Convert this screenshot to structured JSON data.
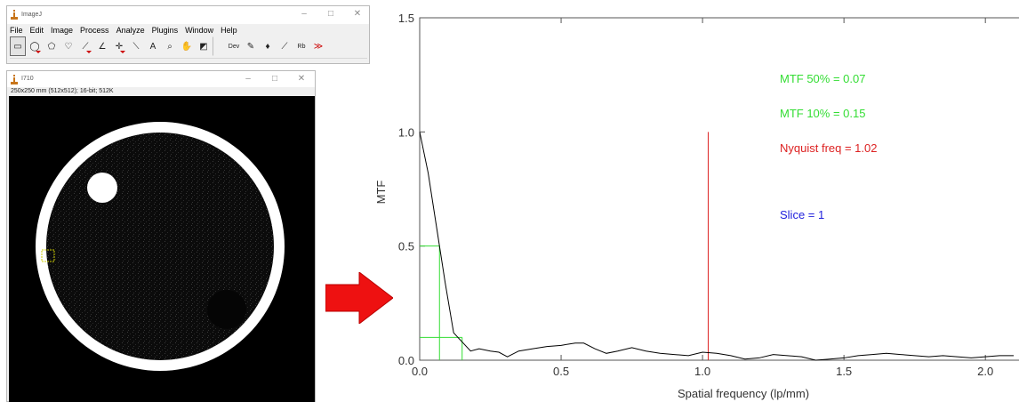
{
  "imagej": {
    "title": "ImageJ",
    "menu": [
      "File",
      "Edit",
      "Image",
      "Process",
      "Analyze",
      "Plugins",
      "Window",
      "Help"
    ],
    "tools": [
      {
        "icon": "rectangle-select-icon",
        "glyph": "▭",
        "selected": true
      },
      {
        "icon": "oval-select-icon",
        "glyph": "◯"
      },
      {
        "icon": "polygon-select-icon",
        "glyph": "⬠"
      },
      {
        "icon": "freehand-select-icon",
        "glyph": "♡"
      },
      {
        "icon": "line-tool-icon",
        "glyph": "⟋"
      },
      {
        "icon": "angle-tool-icon",
        "glyph": "∠"
      },
      {
        "icon": "point-tool-icon",
        "glyph": "✛"
      },
      {
        "icon": "wand-tool-icon",
        "glyph": "⟍"
      },
      {
        "icon": "text-tool-icon",
        "glyph": "A"
      },
      {
        "icon": "magnifier-icon",
        "glyph": "⌕"
      },
      {
        "icon": "hand-scroll-icon",
        "glyph": "✋"
      },
      {
        "icon": "color-picker-icon",
        "glyph": "◩"
      },
      {
        "icon": "developer-menu-icon",
        "glyph": "Dev"
      },
      {
        "icon": "brush-icon",
        "glyph": "✎"
      },
      {
        "icon": "flood-fill-icon",
        "glyph": "♦"
      },
      {
        "icon": "pencil-icon",
        "glyph": "⟋"
      },
      {
        "icon": "lut-menu-icon",
        "glyph": "Rb"
      },
      {
        "icon": "more-tools-icon",
        "glyph": "≫"
      }
    ]
  },
  "image_window": {
    "title": "I710",
    "info": "250x250 mm (512x512); 16-bit; 512K"
  },
  "chart_data": {
    "type": "line",
    "xlabel": "Spatial frequency (lp/mm)",
    "ylabel": "MTF",
    "xlim": [
      0,
      2.1
    ],
    "ylim": [
      0,
      1.5
    ],
    "xticks": [
      0.0,
      0.5,
      1.0,
      1.5,
      2.0
    ],
    "xtick_labels": [
      "0.0",
      "0.5",
      "1.0",
      "1.5",
      "2.0"
    ],
    "yticks": [
      0.0,
      0.5,
      1.0,
      1.5
    ],
    "ytick_labels": [
      "0.0",
      "0.5",
      "1.0",
      "1.5"
    ],
    "series": [
      {
        "color": "#000000",
        "x": [
          0.0,
          0.03,
          0.06,
          0.09,
          0.12,
          0.15,
          0.18,
          0.21,
          0.25,
          0.28,
          0.31,
          0.35,
          0.4,
          0.45,
          0.5,
          0.55,
          0.58,
          0.62,
          0.66,
          0.7,
          0.75,
          0.8,
          0.85,
          0.9,
          0.95,
          1.0,
          1.05,
          1.1,
          1.15,
          1.2,
          1.25,
          1.3,
          1.35,
          1.4,
          1.45,
          1.5,
          1.55,
          1.6,
          1.65,
          1.7,
          1.75,
          1.8,
          1.85,
          1.9,
          1.95,
          2.0,
          2.05,
          2.1
        ],
        "y": [
          1.0,
          0.82,
          0.58,
          0.34,
          0.12,
          0.08,
          0.04,
          0.05,
          0.04,
          0.035,
          0.015,
          0.04,
          0.05,
          0.06,
          0.065,
          0.075,
          0.075,
          0.05,
          0.03,
          0.04,
          0.055,
          0.04,
          0.03,
          0.025,
          0.02,
          0.035,
          0.03,
          0.02,
          0.005,
          0.01,
          0.025,
          0.02,
          0.015,
          0.0,
          0.005,
          0.01,
          0.02,
          0.025,
          0.03,
          0.025,
          0.02,
          0.015,
          0.02,
          0.015,
          0.01,
          0.015,
          0.02,
          0.02
        ]
      }
    ],
    "markers": {
      "mtf50": {
        "x": 0.07,
        "y": 0.5,
        "color": "#33dd33"
      },
      "mtf10": {
        "x": 0.15,
        "y": 0.1,
        "color": "#33dd33"
      },
      "nyquist": {
        "x": 1.02,
        "y": 1.0,
        "color": "#dd2222"
      }
    },
    "annotations": [
      {
        "text": "MTF 50% = 0.07",
        "color": "#33dd33"
      },
      {
        "text": "MTF 10% = 0.15",
        "color": "#33dd33"
      },
      {
        "text": "Nyquist freq = 1.02",
        "color": "#dd2222"
      },
      {
        "text": "Slice = 1",
        "color": "#2222dd"
      }
    ]
  },
  "colors": {
    "arrow": "#ee1111",
    "phantom_ring": "#ffffff",
    "roi": "#cccc00"
  }
}
